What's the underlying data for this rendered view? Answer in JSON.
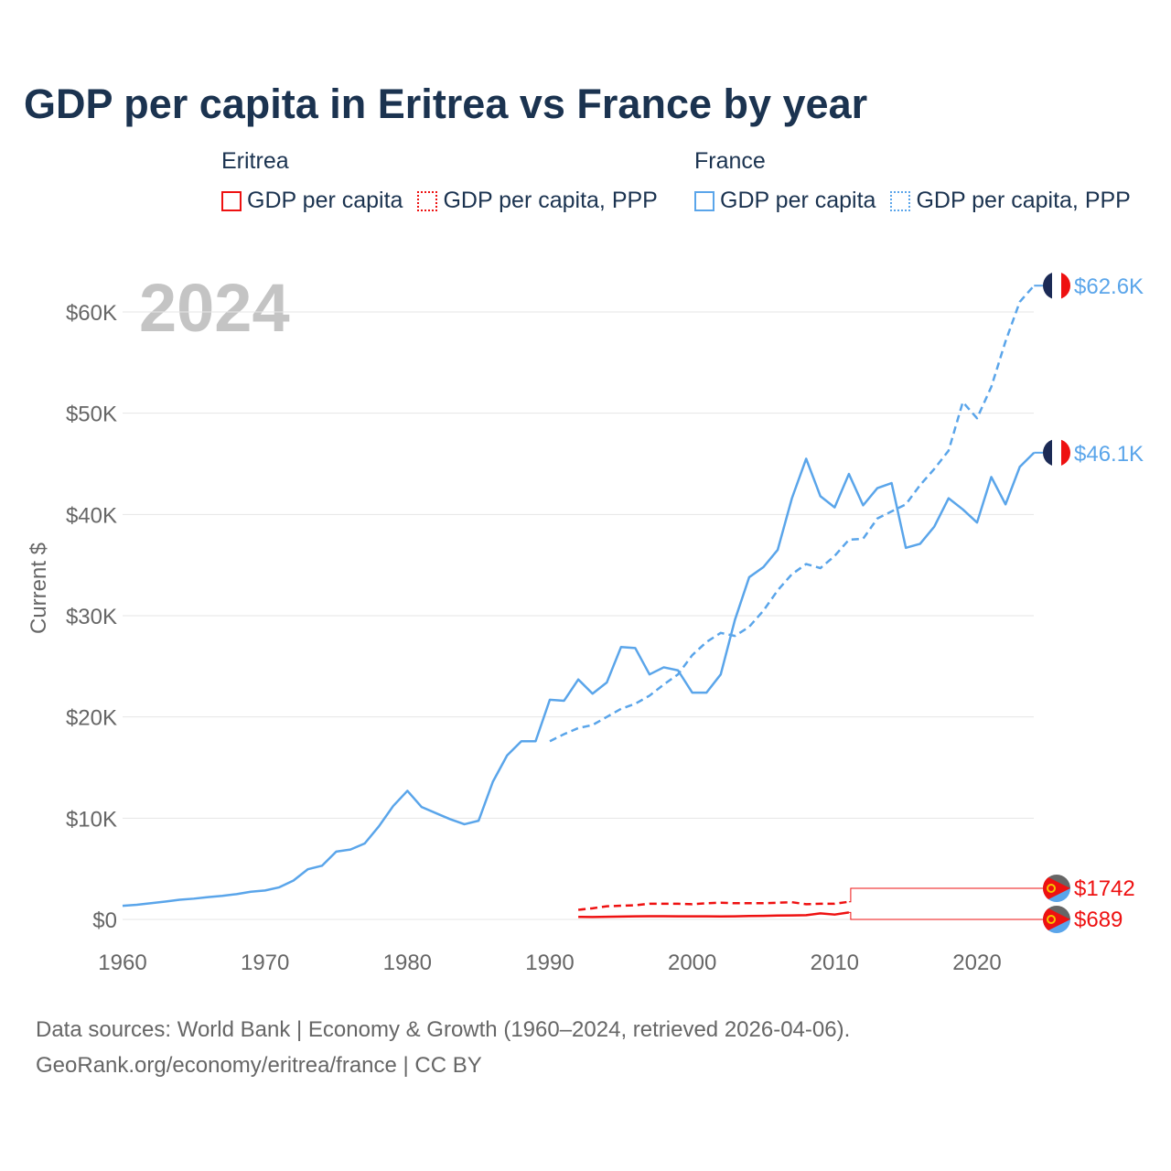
{
  "title": "GDP per capita in Eritrea vs France by year",
  "legend": {
    "groups": [
      {
        "name": "Eritrea",
        "color": "#ee1111",
        "items": [
          "GDP per capita",
          "GDP per capita, PPP"
        ]
      },
      {
        "name": "France",
        "color": "#5aa5ea",
        "items": [
          "GDP per capita",
          "GDP per capita, PPP"
        ]
      }
    ]
  },
  "year_watermark": "2024",
  "source": {
    "line1": "Data sources: World Bank | Economy & Growth (1960–2024, retrieved 2026-04-06).",
    "line2": "GeoRank.org/economy/eritrea/france | CC BY"
  },
  "chart_data": {
    "type": "line",
    "title": "GDP per capita in Eritrea vs France by year",
    "xlabel": "",
    "ylabel": "Current $",
    "xlim": [
      1960,
      2024
    ],
    "ylim": [
      0,
      65000
    ],
    "x_ticks": [
      1960,
      1970,
      1980,
      1990,
      2000,
      2010,
      2020
    ],
    "y_ticks": [
      0,
      10000,
      20000,
      30000,
      40000,
      50000,
      60000
    ],
    "y_tick_labels": [
      "$0",
      "$10K",
      "$20K",
      "$30K",
      "$40K",
      "$50K",
      "$60K"
    ],
    "grid": "horizontal",
    "legend_position": "top",
    "series": [
      {
        "name": "France GDP per capita",
        "country": "France",
        "dash": false,
        "color": "#5aa5ea",
        "end_label": "$46.1K",
        "x_start": 1960,
        "values": [
          1340,
          1450,
          1600,
          1760,
          1940,
          2050,
          2200,
          2330,
          2500,
          2730,
          2860,
          3170,
          3840,
          4950,
          5300,
          6700,
          6900,
          7500,
          9200,
          11200,
          12700,
          11100,
          10500,
          9900,
          9400,
          9750,
          13600,
          16200,
          17600,
          17600,
          21700,
          21600,
          23700,
          22300,
          23400,
          26900,
          26800,
          24200,
          24900,
          24600,
          22400,
          22400,
          24200,
          29600,
          33800,
          34800,
          36500,
          41600,
          45500,
          41800,
          40700,
          44000,
          40900,
          42600,
          43100,
          36700,
          37100,
          38800,
          41600,
          40500,
          39200,
          43700,
          41000,
          44700,
          46100
        ]
      },
      {
        "name": "France GDP per capita, PPP",
        "country": "France",
        "dash": true,
        "color": "#5aa5ea",
        "end_label": "$62.6K",
        "x_start": 1990,
        "values": [
          17600,
          18300,
          18900,
          19200,
          20000,
          20800,
          21300,
          22100,
          23200,
          24200,
          26100,
          27400,
          28300,
          28000,
          28900,
          30500,
          32500,
          34100,
          35100,
          34700,
          35900,
          37500,
          37600,
          39600,
          40300,
          41000,
          42900,
          44500,
          46300,
          51100,
          49500,
          52600,
          57100,
          61000,
          62600
        ]
      },
      {
        "name": "Eritrea GDP per capita",
        "country": "Eritrea",
        "dash": false,
        "color": "#ee1111",
        "end_label": "$689",
        "x_start": 1992,
        "values": [
          250,
          240,
          260,
          280,
          300,
          320,
          320,
          310,
          310,
          300,
          290,
          310,
          340,
          350,
          380,
          400,
          420,
          600,
          480,
          689
        ]
      },
      {
        "name": "Eritrea GDP per capita, PPP",
        "country": "Eritrea",
        "dash": true,
        "color": "#ee1111",
        "end_label": "$1742",
        "x_start": 1992,
        "values": [
          950,
          1100,
          1300,
          1350,
          1400,
          1550,
          1550,
          1550,
          1500,
          1600,
          1650,
          1600,
          1600,
          1600,
          1650,
          1700,
          1500,
          1550,
          1550,
          1742
        ]
      }
    ]
  }
}
